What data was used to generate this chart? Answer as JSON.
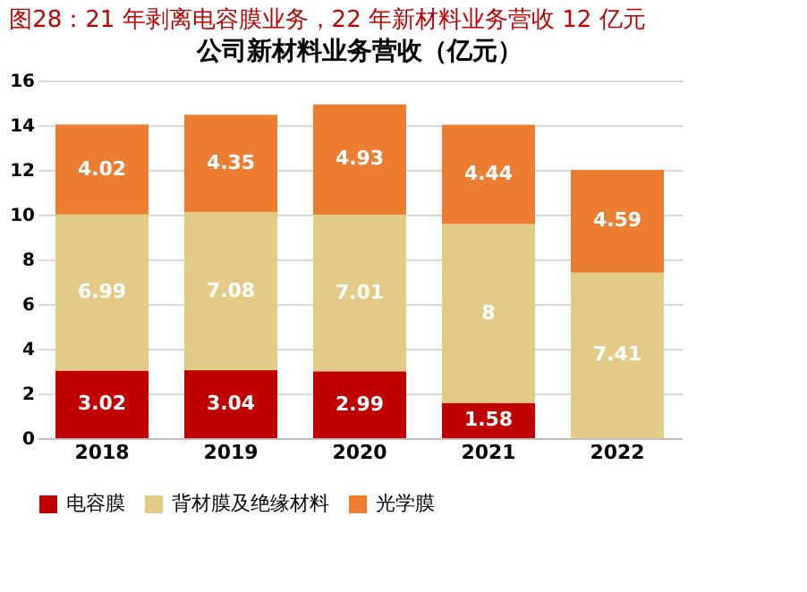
{
  "chart_data": {
    "type": "bar",
    "stacked": true,
    "title": "图28：21 年剥离电容膜业务，22 年新材料业务营收 12 亿元",
    "subtitle": "公司新材料业务营收（亿元）",
    "categories": [
      "2018",
      "2019",
      "2020",
      "2021",
      "2022"
    ],
    "series": [
      {
        "name": "电容膜",
        "color": "#c00000",
        "values": [
          3.02,
          3.04,
          2.99,
          1.58,
          null
        ]
      },
      {
        "name": "背材膜及绝缘材料",
        "color": "#e2cb86",
        "values": [
          6.99,
          7.08,
          7.01,
          8,
          7.41
        ]
      },
      {
        "name": "光学膜",
        "color": "#ed7d31",
        "values": [
          4.02,
          4.35,
          4.93,
          4.44,
          4.59
        ]
      }
    ],
    "ylim": [
      0,
      16
    ],
    "yticks": [
      0,
      2,
      4,
      6,
      8,
      10,
      12,
      14,
      16
    ],
    "grid": "y",
    "legend": "bottom",
    "data_labels": true
  }
}
